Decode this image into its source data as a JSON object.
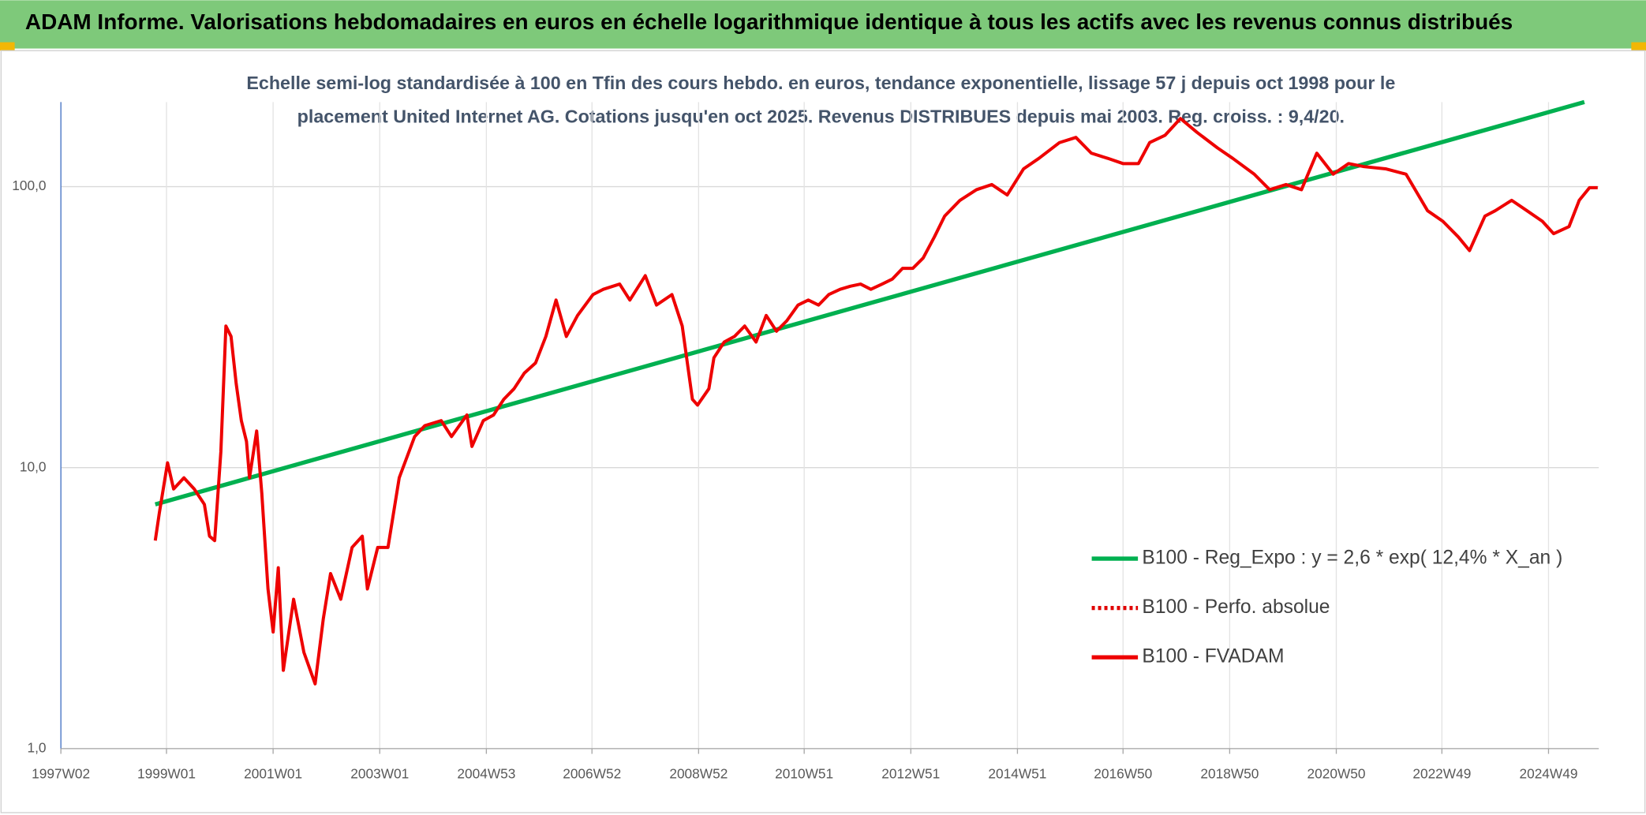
{
  "chart_data": {
    "type": "line",
    "title": "ADAM Informe. Valorisations hebdomadaires en euros en échelle logarithmique identique à tous les actifs avec les revenus connus distribués",
    "subtitle": [
      "Echelle semi-log standardisée à 100 en Tfin des cours hebdo. en euros, tendance exponentielle, lissage 57 j depuis oct 1998 pour le",
      "placement United Internet AG. Cotations jusqu'en oct 2025. Revenus DISTRIBUES depuis mai 2003. Reg. croiss. : 9,4/20."
    ],
    "log_scale": true,
    "grid": true,
    "xlim": [
      "1997W02",
      "2025W46"
    ],
    "xticks": [
      "1997W02",
      "1999W01",
      "2001W01",
      "2003W01",
      "2004W53",
      "2006W52",
      "2008W52",
      "2010W51",
      "2012W51",
      "2014W51",
      "2016W50",
      "2018W50",
      "2020W50",
      "2022W49",
      "2024W49"
    ],
    "ylim": [
      1,
      200
    ],
    "yticks": [
      {
        "value": 1,
        "label": "1,0"
      },
      {
        "value": 10,
        "label": "10,0"
      },
      {
        "value": 100,
        "label": "100,0"
      }
    ],
    "series": [
      {
        "name": "B100 - Reg_Expo : y = 2,6 * exp( 12,4% *  X_an )",
        "color": "#00b050",
        "style": "solid",
        "x": [
          "1998W42",
          "2025W32"
        ],
        "values": [
          7.4,
          200
        ]
      },
      {
        "name": "B100 - Perfo. absolue",
        "color": "#e00000",
        "style": "dotted",
        "x": [],
        "values": []
      },
      {
        "name": "B100 - FVADAM",
        "color": "#ee0000",
        "style": "solid",
        "x": [
          "1998W42",
          "1998W46",
          "1999W02",
          "1999W08",
          "1999W18",
          "1999W28",
          "1999W38",
          "1999W43",
          "1999W48",
          "2000W02",
          "2000W07",
          "2000W12",
          "2000W17",
          "2000W22",
          "2000W27",
          "2000W30",
          "2000W37",
          "2000W42",
          "2000W48",
          "2001W01",
          "2001W06",
          "2001W11",
          "2001W21",
          "2001W31",
          "2001W42",
          "2001W50",
          "2002W05",
          "2002W15",
          "2002W26",
          "2002W36",
          "2002W41",
          "2002W51",
          "2003W09",
          "2003W20",
          "2003W35",
          "2003W45",
          "2004W09",
          "2004W19",
          "2004W34",
          "2004W39",
          "2004W50",
          "2005W08",
          "2005W18",
          "2005W28",
          "2005W38",
          "2005W49",
          "2006W07",
          "2006W17",
          "2006W27",
          "2006W38",
          "2007W01",
          "2007W11",
          "2007W27",
          "2007W37",
          "2007W52",
          "2008W11",
          "2008W26",
          "2008W36",
          "2008W46",
          "2008W51",
          "2009W10",
          "2009W15",
          "2009W25",
          "2009W35",
          "2009W45",
          "2010W04",
          "2010W14",
          "2010W24",
          "2010W34",
          "2010W45",
          "2011W03",
          "2011W13",
          "2011W23",
          "2011W34",
          "2011W44",
          "2012W02",
          "2012W12",
          "2012W23",
          "2012W33",
          "2012W43",
          "2013W01",
          "2013W11",
          "2013W22",
          "2013W32",
          "2013W47",
          "2014W11",
          "2014W26",
          "2014W41",
          "2015W05",
          "2015W20",
          "2015W40",
          "2016W04",
          "2016W19",
          "2016W35",
          "2016W50",
          "2017W13",
          "2017W24",
          "2017W39",
          "2018W02",
          "2018W18",
          "2018W38",
          "2019W01",
          "2019W22",
          "2019W37",
          "2020W01",
          "2020W16",
          "2020W31",
          "2020W47",
          "2021W10",
          "2021W25",
          "2021W46",
          "2022W14",
          "2022W35",
          "2022W50",
          "2023W13",
          "2023W24",
          "2023W39",
          "2023W49",
          "2024W13",
          "2024W28",
          "2024W43",
          "2025W02",
          "2025W17",
          "2025W27",
          "2025W37",
          "2025W45"
        ],
        "values": [
          5.5,
          6.9,
          10.4,
          8.4,
          9.2,
          8.4,
          7.4,
          5.7,
          5.5,
          11.4,
          31.9,
          29.3,
          19.9,
          14.7,
          12.4,
          9.2,
          13.5,
          8.1,
          3.7,
          2.6,
          4.4,
          1.9,
          3.4,
          2.2,
          1.7,
          2.9,
          4.2,
          3.4,
          5.2,
          5.7,
          3.7,
          5.2,
          5.2,
          9.2,
          12.9,
          14.1,
          14.7,
          12.9,
          15.4,
          11.9,
          14.7,
          15.4,
          17.5,
          19.1,
          21.7,
          23.6,
          29.3,
          39.5,
          29.3,
          34.8,
          41.3,
          43.1,
          45.0,
          39.5,
          48.2,
          37.9,
          41.3,
          31.9,
          17.5,
          16.7,
          19.1,
          24.6,
          28.0,
          29.3,
          31.9,
          28.0,
          34.8,
          30.6,
          33.3,
          37.9,
          39.5,
          37.9,
          41.3,
          43.1,
          44.2,
          45.0,
          43.1,
          45.0,
          46.9,
          51.2,
          51.2,
          55.7,
          66.2,
          78.6,
          89.4,
          97.5,
          101.7,
          93.4,
          115.7,
          126.1,
          143.5,
          149.7,
          131.6,
          126.1,
          120.8,
          120.8,
          143.5,
          152.4,
          174.8,
          156.3,
          137.4,
          126.1,
          110.8,
          97.5,
          101.7,
          97.5,
          131.6,
          110.8,
          120.8,
          117.8,
          115.7,
          110.8,
          82.1,
          75.3,
          66.2,
          59.2,
          78.6,
          82.1,
          89.4,
          82.1,
          75.3,
          68.0,
          72.1,
          89.4,
          99.1,
          99.1
        ]
      }
    ],
    "legend": "lower right"
  }
}
